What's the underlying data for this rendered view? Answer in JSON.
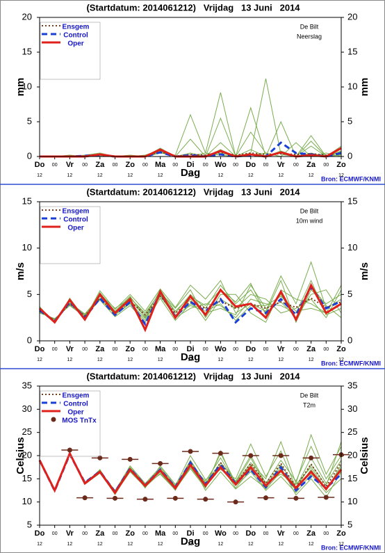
{
  "chart_data": [
    {
      "type": "line",
      "title": "(Startdatum: 2014061212)   Vrijdag   13 Juni   2014",
      "location": "De Bilt",
      "variable": "Neerslag",
      "y_label": "mm",
      "x_label": "Dag",
      "source": "Bron: ECMWF/KNMI",
      "categories": [
        "Do",
        "00",
        "Vr",
        "00",
        "Za",
        "00",
        "Zo",
        "00",
        "Ma",
        "00",
        "Di",
        "00",
        "Wo",
        "00",
        "Do",
        "00",
        "Vr",
        "00",
        "Za",
        "00",
        "Zo"
      ],
      "category_sublabels": [
        "12",
        null,
        "12",
        null,
        "12",
        null,
        "12",
        null,
        "12",
        null,
        "12",
        null,
        "12",
        null,
        "12",
        null,
        "12",
        null,
        "12",
        null,
        "12"
      ],
      "ylim": [
        0,
        20
      ],
      "yticks": [
        0,
        5,
        10,
        15,
        20
      ],
      "ensemble": {
        "color": "#7aad4f",
        "members": [
          [
            0,
            0,
            0,
            0.2,
            0.5,
            0,
            0,
            0,
            0.8,
            0,
            0.3,
            0,
            5.5,
            0,
            1.0,
            0,
            0.5,
            0,
            0.2,
            0,
            0.8
          ],
          [
            0,
            0,
            0.1,
            0,
            0.3,
            0,
            0,
            0,
            0.5,
            0.2,
            6.0,
            0.5,
            0.2,
            0,
            0.5,
            11.2,
            0.3,
            0,
            1.5,
            0,
            0.2
          ],
          [
            0,
            0,
            0,
            0,
            0.2,
            0,
            0.1,
            0,
            1.2,
            0,
            0,
            0.5,
            9.2,
            0,
            0.2,
            0.5,
            0,
            2.0,
            0,
            0.5,
            0
          ],
          [
            0,
            0,
            0.2,
            0,
            0.1,
            0,
            0,
            0,
            0.6,
            0,
            0.5,
            0,
            2.0,
            0,
            7.0,
            0,
            0.8,
            0,
            3.0,
            0,
            1.5
          ],
          [
            0,
            0,
            0,
            0,
            0.4,
            0,
            0,
            0.2,
            0.9,
            0,
            0,
            0,
            0.5,
            0,
            0.3,
            0,
            5.0,
            0,
            0.5,
            0,
            0.3
          ],
          [
            0,
            0,
            0,
            0,
            0.3,
            0,
            0.2,
            0,
            0.7,
            0,
            2.5,
            0,
            1.0,
            0,
            3.5,
            0.5,
            0,
            0,
            2.2,
            0,
            0.7
          ]
        ]
      },
      "series": [
        {
          "name": "Ensgem",
          "color": "#7a3b1a",
          "style": "dotted",
          "values": [
            0,
            0,
            0,
            0,
            0.3,
            0,
            0,
            0,
            0.7,
            0,
            0.3,
            0.2,
            0.6,
            0.2,
            0.5,
            0.3,
            0.4,
            0.3,
            0.4,
            0.2,
            0.5
          ]
        },
        {
          "name": "Control",
          "color": "#1a3fd6",
          "style": "dashed",
          "values": [
            0,
            0,
            0,
            0.1,
            0.2,
            0,
            0,
            0,
            0.6,
            0,
            0.2,
            0,
            0.3,
            0,
            0.2,
            0,
            2.0,
            0.5,
            0.3,
            0,
            0.5
          ]
        },
        {
          "name": "Oper",
          "color": "#e0201a",
          "style": "solid",
          "values": [
            0,
            0,
            0,
            0,
            0.3,
            0,
            0,
            0,
            1.0,
            0,
            0,
            0,
            0.8,
            0,
            0.3,
            0,
            0.6,
            0,
            0.2,
            0,
            1.2
          ]
        }
      ]
    },
    {
      "type": "line",
      "title": "(Startdatum: 2014061212)   Vrijdag   13 Juni   2014",
      "location": "De Bilt",
      "variable": "10m wind",
      "y_label": "m/s",
      "x_label": "Dag",
      "source": "Bron: ECMWF/KNMI",
      "categories": [
        "Do",
        "00",
        "Vr",
        "00",
        "Za",
        "00",
        "Zo",
        "00",
        "Ma",
        "00",
        "Di",
        "00",
        "Wo",
        "00",
        "Do",
        "00",
        "Vr",
        "00",
        "Za",
        "00",
        "Zo"
      ],
      "category_sublabels": [
        "12",
        null,
        "12",
        null,
        "12",
        null,
        "12",
        null,
        "12",
        null,
        "12",
        null,
        "12",
        null,
        "12",
        null,
        "12",
        null,
        "12",
        null,
        "12"
      ],
      "ylim": [
        0,
        15
      ],
      "yticks": [
        0,
        5,
        10,
        15
      ],
      "ensemble": {
        "color": "#7aad4f",
        "members": [
          [
            3.6,
            2.0,
            4.5,
            2.5,
            5.2,
            3.2,
            4.8,
            2.5,
            5.5,
            3.0,
            5.0,
            3.5,
            6.0,
            4.0,
            5.5,
            3.0,
            6.5,
            2.0,
            5.5,
            4.0,
            5.0
          ],
          [
            3.2,
            2.3,
            4.0,
            2.8,
            4.6,
            2.8,
            4.0,
            2.2,
            5.0,
            2.5,
            3.5,
            4.0,
            3.8,
            2.5,
            4.5,
            4.0,
            3.8,
            3.0,
            6.5,
            2.8,
            3.5
          ],
          [
            3.4,
            2.1,
            4.3,
            2.3,
            5.0,
            3.5,
            4.6,
            3.0,
            5.2,
            3.5,
            5.5,
            2.5,
            5.0,
            5.0,
            3.0,
            2.0,
            5.5,
            4.5,
            4.0,
            3.0,
            6.0
          ],
          [
            3.0,
            2.4,
            3.8,
            2.6,
            4.4,
            2.6,
            3.8,
            2.0,
            4.6,
            2.2,
            4.0,
            3.0,
            3.5,
            2.8,
            6.0,
            3.5,
            4.2,
            2.5,
            5.0,
            5.5,
            3.0
          ],
          [
            3.7,
            1.9,
            4.6,
            2.4,
            5.4,
            3.4,
            5.0,
            3.2,
            5.6,
            3.6,
            6.0,
            4.5,
            6.5,
            3.0,
            4.0,
            3.2,
            7.0,
            4.0,
            8.5,
            3.5,
            4.5
          ],
          [
            3.3,
            2.2,
            4.1,
            2.9,
            4.8,
            3.0,
            4.4,
            2.6,
            4.8,
            2.6,
            4.5,
            2.2,
            4.5,
            3.5,
            5.0,
            4.5,
            3.0,
            3.5,
            4.5,
            2.5,
            5.5
          ],
          [
            3.5,
            2.0,
            4.4,
            2.2,
            5.1,
            3.1,
            4.7,
            2.8,
            5.3,
            3.2,
            4.8,
            3.8,
            5.5,
            4.2,
            6.2,
            2.8,
            5.0,
            2.2,
            6.0,
            3.8,
            2.5
          ],
          [
            3.1,
            2.3,
            3.9,
            2.7,
            4.5,
            2.9,
            4.1,
            2.4,
            4.9,
            2.8,
            3.8,
            3.2,
            4.0,
            2.2,
            3.8,
            3.8,
            4.8,
            3.2,
            3.5,
            3.0,
            4.0
          ]
        ]
      },
      "series": [
        {
          "name": "Ensgem",
          "color": "#7a3b1a",
          "style": "dotted",
          "values": [
            3.2,
            2.2,
            4.0,
            2.7,
            4.6,
            3.0,
            4.3,
            2.8,
            4.8,
            3.0,
            4.2,
            3.5,
            4.3,
            3.5,
            4.0,
            3.5,
            4.2,
            3.6,
            4.6,
            3.6,
            4.2
          ]
        },
        {
          "name": "Control",
          "color": "#1a3fd6",
          "style": "dashed",
          "values": [
            3.3,
            2.1,
            4.2,
            2.5,
            4.6,
            2.8,
            4.2,
            1.8,
            5.2,
            2.6,
            4.2,
            3.2,
            4.5,
            2.0,
            3.5,
            3.0,
            4.5,
            2.8,
            5.8,
            3.5,
            4.3
          ]
        },
        {
          "name": "Oper",
          "color": "#e0201a",
          "style": "solid",
          "values": [
            3.5,
            2.0,
            4.4,
            2.3,
            5.0,
            3.0,
            4.5,
            1.2,
            5.3,
            2.5,
            4.8,
            2.8,
            5.5,
            3.7,
            4.0,
            2.5,
            5.3,
            2.3,
            6.0,
            3.0,
            4.0
          ]
        }
      ]
    },
    {
      "type": "line",
      "title": "(Startdatum: 2014061212)   Vrijdag   13 Juni   2014",
      "location": "De Bilt",
      "variable": "T2m",
      "y_label": "Celsius",
      "x_label": "Dag",
      "source": "Bron: ECMWF/KNMI",
      "categories": [
        "Do",
        "00",
        "Vr",
        "00",
        "Za",
        "00",
        "Zo",
        "00",
        "Ma",
        "00",
        "Di",
        "00",
        "Wo",
        "00",
        "Do",
        "00",
        "Vr",
        "00",
        "Za",
        "00",
        "Zo"
      ],
      "category_sublabels": [
        "12",
        null,
        "12",
        null,
        "12",
        null,
        "12",
        null,
        "12",
        null,
        "12",
        null,
        "12",
        null,
        "12",
        null,
        "12",
        null,
        "12",
        null,
        "12"
      ],
      "ylim": [
        5,
        35
      ],
      "yticks": [
        5,
        10,
        15,
        20,
        25,
        30,
        35
      ],
      "ensemble": {
        "color": "#7aad4f",
        "members": [
          [
            19,
            12.3,
            20.3,
            14.2,
            16.8,
            12.2,
            17.5,
            13.8,
            17.2,
            13.2,
            19.0,
            14.0,
            18.5,
            14.5,
            20.0,
            14.0,
            19.0,
            14.5,
            22.0,
            15.0,
            20.0
          ],
          [
            19,
            12.6,
            20.6,
            13.8,
            16.2,
            11.8,
            16.5,
            13.2,
            16.2,
            12.8,
            17.2,
            13.0,
            21.0,
            13.5,
            16.5,
            12.5,
            15.5,
            12.0,
            16.0,
            12.0,
            15.0
          ],
          [
            19,
            12.4,
            20.4,
            14.0,
            16.6,
            12.4,
            17.8,
            14.0,
            17.5,
            13.5,
            20.0,
            14.8,
            17.0,
            15.0,
            22.5,
            15.5,
            21.0,
            13.0,
            18.0,
            13.5,
            23.0
          ],
          [
            19,
            12.5,
            20.2,
            14.3,
            16.4,
            11.6,
            16.8,
            13.5,
            16.5,
            12.5,
            18.5,
            12.5,
            16.5,
            12.8,
            15.5,
            13.0,
            17.5,
            11.5,
            15.0,
            11.0,
            16.5
          ],
          [
            19,
            12.2,
            20.5,
            13.9,
            17.0,
            12.0,
            17.2,
            13.0,
            17.8,
            13.8,
            18.0,
            14.5,
            19.5,
            14.0,
            18.5,
            15.0,
            23.0,
            14.0,
            24.5,
            16.0,
            22.0
          ],
          [
            19,
            12.7,
            20.7,
            14.1,
            16.3,
            12.3,
            16.6,
            13.7,
            16.0,
            12.6,
            17.5,
            13.2,
            18.0,
            13.0,
            17.0,
            12.8,
            16.5,
            12.5,
            17.0,
            12.5,
            18.0
          ],
          [
            19,
            12.4,
            20.4,
            14.0,
            16.9,
            12.1,
            17.0,
            13.4,
            17.0,
            13.0,
            18.8,
            13.6,
            20.5,
            14.2,
            19.5,
            13.5,
            18.0,
            13.2,
            19.5,
            14.0,
            19.0
          ],
          [
            19,
            12.6,
            20.6,
            14.2,
            16.5,
            12.5,
            17.3,
            13.6,
            16.8,
            13.4,
            17.8,
            14.2,
            17.8,
            13.8,
            18.0,
            14.2,
            16.0,
            13.8,
            17.5,
            12.8,
            17.5
          ]
        ]
      },
      "series": [
        {
          "name": "Ensgem",
          "color": "#7a3b1a",
          "style": "dotted",
          "values": [
            19,
            12.5,
            20.4,
            14.1,
            16.6,
            12.2,
            17.1,
            13.5,
            16.9,
            13.1,
            18.3,
            13.7,
            18.5,
            14.0,
            18.3,
            14.0,
            18.3,
            13.2,
            18.2,
            13.3,
            18.5
          ]
        },
        {
          "name": "Control",
          "color": "#1a3fd6",
          "style": "dashed",
          "values": [
            19,
            12.4,
            20.3,
            14.2,
            16.6,
            12.2,
            17.2,
            13.6,
            17.0,
            13.2,
            18.5,
            13.8,
            18.0,
            14.0,
            17.0,
            13.2,
            17.5,
            12.5,
            15.5,
            13.0,
            16.0
          ]
        },
        {
          "name": "Oper",
          "color": "#e0201a",
          "style": "solid",
          "values": [
            19,
            12.5,
            20.5,
            14.0,
            16.5,
            12.0,
            17.0,
            13.5,
            16.8,
            13.0,
            18.0,
            13.5,
            17.5,
            13.8,
            17.5,
            13.5,
            16.8,
            13.0,
            16.5,
            12.8,
            17.0
          ]
        }
      ],
      "mos": {
        "name": "MOS TnTx",
        "color": "#6b2a1a",
        "values": [
          null,
          null,
          21.2,
          10.9,
          19.5,
          10.8,
          19.2,
          10.6,
          18.3,
          10.8,
          20.9,
          10.6,
          20.5,
          10.0,
          20.0,
          10.9,
          20.0,
          10.8,
          19.5,
          11.0,
          20.2
        ]
      }
    }
  ]
}
